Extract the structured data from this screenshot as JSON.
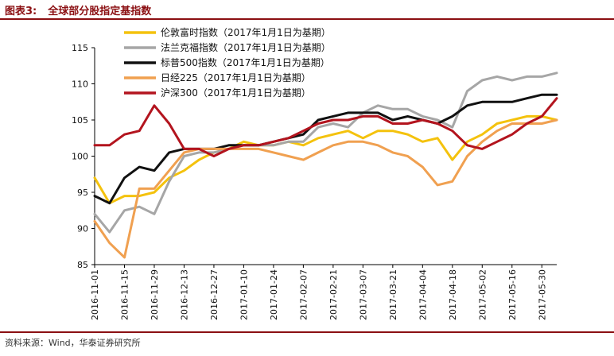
{
  "figure": {
    "number": "图表3:",
    "title": "全球部分股指定基指数",
    "source": "资料来源：Wind，华泰证券研究所"
  },
  "colors": {
    "ftse": "#f4c20d",
    "cac": "#a6a6a6",
    "sp500": "#111111",
    "nikkei": "#f0a050",
    "hs300": "#b3141e",
    "rule": "#8b0f12"
  },
  "chart_data": {
    "type": "line",
    "title": "",
    "xlabel": "",
    "ylabel": "",
    "ylim": [
      85,
      115
    ],
    "yticks": [
      85,
      90,
      95,
      100,
      105,
      110,
      115
    ],
    "grid": false,
    "legend": "top-left",
    "xticks": [
      "2016-11-01",
      "2016-11-15",
      "2016-11-29",
      "2016-12-13",
      "2016-12-27",
      "2017-01-10",
      "2017-01-24",
      "2017-02-07",
      "2017-02-21",
      "2017-03-07",
      "2017-03-21",
      "2017-04-04",
      "2017-04-18",
      "2017-05-02",
      "2017-05-16",
      "2017-05-30"
    ],
    "x": [
      "2016-11-01",
      "2016-11-08",
      "2016-11-15",
      "2016-11-22",
      "2016-11-29",
      "2016-12-06",
      "2016-12-13",
      "2016-12-20",
      "2016-12-27",
      "2017-01-03",
      "2017-01-10",
      "2017-01-17",
      "2017-01-24",
      "2017-01-31",
      "2017-02-07",
      "2017-02-14",
      "2017-02-21",
      "2017-02-28",
      "2017-03-07",
      "2017-03-14",
      "2017-03-21",
      "2017-03-28",
      "2017-04-04",
      "2017-04-11",
      "2017-04-18",
      "2017-04-25",
      "2017-05-02",
      "2017-05-09",
      "2017-05-16",
      "2017-05-23",
      "2017-05-30",
      "2017-06-06"
    ],
    "series": [
      {
        "name": "伦敦富时指数（2017年1月1日为基期）",
        "color_key": "ftse",
        "values": [
          97.0,
          93.5,
          94.5,
          94.5,
          95.0,
          97.0,
          98.0,
          99.5,
          100.5,
          101.0,
          102.0,
          101.5,
          101.5,
          102.0,
          101.5,
          102.5,
          103.0,
          103.5,
          102.5,
          103.5,
          103.5,
          103.0,
          102.0,
          102.5,
          99.5,
          102.0,
          103.0,
          104.5,
          105.0,
          105.5,
          105.5,
          105.0
        ]
      },
      {
        "name": "法兰克福指数（2017年1月1日为基期）",
        "color_key": "cac",
        "values": [
          92.0,
          89.5,
          92.5,
          93.0,
          92.0,
          96.5,
          100.0,
          100.5,
          100.5,
          101.0,
          101.5,
          101.5,
          101.5,
          102.0,
          102.0,
          104.0,
          104.5,
          104.0,
          106.0,
          107.0,
          106.5,
          106.5,
          105.5,
          105.0,
          104.0,
          109.0,
          110.5,
          111.0,
          110.5,
          111.0,
          111.0,
          111.5
        ]
      },
      {
        "name": "标普500指数（2017年1月1日为基期）",
        "color_key": "sp500",
        "values": [
          94.5,
          93.5,
          97.0,
          98.5,
          98.0,
          100.5,
          101.0,
          101.0,
          101.0,
          101.5,
          101.5,
          101.5,
          102.0,
          102.5,
          103.0,
          105.0,
          105.5,
          106.0,
          106.0,
          106.0,
          105.0,
          105.5,
          105.0,
          104.5,
          105.5,
          107.0,
          107.5,
          107.5,
          107.5,
          108.0,
          108.5,
          108.5
        ]
      },
      {
        "name": "日经225（2017年1月1日为基期）",
        "color_key": "nikkei",
        "values": [
          91.0,
          88.0,
          86.0,
          95.5,
          95.5,
          98.0,
          100.5,
          101.0,
          101.0,
          101.0,
          101.0,
          101.0,
          100.5,
          100.0,
          99.5,
          100.5,
          101.5,
          102.0,
          102.0,
          101.5,
          100.5,
          100.0,
          98.5,
          96.0,
          96.5,
          100.0,
          102.0,
          103.5,
          104.5,
          104.5,
          104.5,
          105.0
        ]
      },
      {
        "name": "沪深300（2017年1月1日为基期）",
        "color_key": "hs300",
        "values": [
          101.5,
          101.5,
          103.0,
          103.5,
          107.0,
          104.5,
          101.0,
          101.0,
          100.0,
          101.0,
          101.5,
          101.5,
          102.0,
          102.5,
          103.5,
          104.5,
          105.0,
          105.0,
          105.5,
          105.5,
          104.5,
          104.5,
          105.0,
          104.5,
          103.5,
          101.5,
          101.0,
          102.0,
          103.0,
          104.5,
          105.5,
          108.0
        ]
      }
    ]
  }
}
